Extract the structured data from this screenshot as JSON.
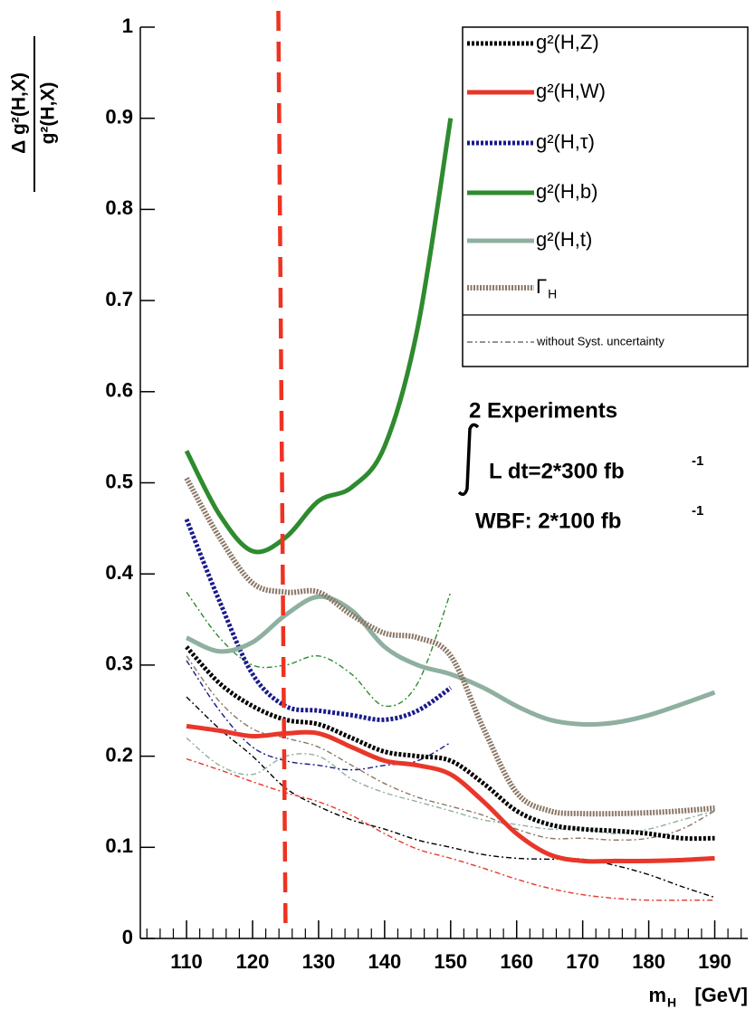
{
  "chart_data": {
    "type": "line",
    "y_label_numerator": "Δ g²(H,X)",
    "y_label_denominator": "g²(H,X)",
    "x_label": "m",
    "x_label_sub": "H",
    "x_label_unit": "[GeV]",
    "xlim": [
      103,
      195
    ],
    "ylim": [
      0,
      1
    ],
    "xticks": [
      110,
      120,
      130,
      140,
      150,
      160,
      170,
      180,
      190
    ],
    "xminorticks": [
      104,
      106,
      108,
      112,
      114,
      116,
      118,
      122,
      124,
      126,
      128,
      132,
      134,
      136,
      138,
      142,
      144,
      146,
      148,
      152,
      154,
      156,
      158,
      162,
      164,
      166,
      168,
      172,
      174,
      176,
      178,
      182,
      184,
      186,
      188,
      192,
      194
    ],
    "yticks": [
      0,
      0.1,
      0.2,
      0.3,
      0.4,
      0.5,
      0.6,
      0.7,
      0.8,
      0.9,
      1
    ],
    "x": [
      110,
      115,
      120,
      125,
      130,
      135,
      140,
      145,
      150,
      155,
      160,
      165,
      170,
      175,
      180,
      185,
      190
    ],
    "series": [
      {
        "name": "g²(H,Z)",
        "color": "#000000",
        "linestyle": "dotted",
        "values": [
          0.32,
          0.28,
          0.255,
          0.24,
          0.235,
          0.22,
          0.205,
          0.2,
          0.195,
          0.17,
          0.14,
          0.125,
          0.12,
          0.118,
          0.115,
          0.11,
          0.11
        ]
      },
      {
        "name": "g²(H,W)",
        "color": "#e8372a",
        "linestyle": "solid",
        "values": [
          0.233,
          0.228,
          0.222,
          0.225,
          0.225,
          0.21,
          0.195,
          0.19,
          0.18,
          0.15,
          0.115,
          0.092,
          0.085,
          0.085,
          0.085,
          0.086,
          0.088
        ]
      },
      {
        "name": "g²(H,τ)",
        "color": "#1a1a8c",
        "linestyle": "dotted",
        "values": [
          0.46,
          0.37,
          0.29,
          0.255,
          0.25,
          0.245,
          0.24,
          0.25,
          0.275,
          null,
          null,
          null,
          null,
          null,
          null,
          null,
          null
        ]
      },
      {
        "name": "g²(H,b)",
        "color": "#2e8b2e",
        "linestyle": "solid",
        "values": [
          0.535,
          0.465,
          0.425,
          0.44,
          0.48,
          0.495,
          0.54,
          0.67,
          0.9,
          null,
          null,
          null,
          null,
          null,
          null,
          null,
          null
        ]
      },
      {
        "name": "g²(H,t)",
        "color": "#8fb0a0",
        "linestyle": "solid",
        "values": [
          0.33,
          0.315,
          0.325,
          0.355,
          0.375,
          0.36,
          0.32,
          0.3,
          0.29,
          0.275,
          0.255,
          0.24,
          0.235,
          0.237,
          0.245,
          0.257,
          0.27
        ]
      },
      {
        "name": "Γ",
        "name_sub": "H",
        "color": "#8b7766",
        "linestyle": "hatched",
        "values": [
          0.505,
          0.44,
          0.39,
          0.38,
          0.38,
          0.355,
          0.335,
          0.33,
          0.31,
          0.23,
          0.16,
          0.14,
          0.137,
          0.137,
          0.138,
          0.14,
          0.143
        ]
      }
    ],
    "nosyst_legend_label": "without Syst. uncertainty",
    "nosyst_series": [
      {
        "color": "#000000",
        "values": [
          0.265,
          0.23,
          0.2,
          0.165,
          0.145,
          0.13,
          0.12,
          0.108,
          0.1,
          0.092,
          0.088,
          0.087,
          0.087,
          0.08,
          0.07,
          0.057,
          0.045
        ]
      },
      {
        "color": "#e8372a",
        "values": [
          0.197,
          0.185,
          0.172,
          0.16,
          0.15,
          0.135,
          0.115,
          0.098,
          0.088,
          0.077,
          0.065,
          0.055,
          0.048,
          0.044,
          0.042,
          0.042,
          0.042
        ]
      },
      {
        "color": "#1a1a8c",
        "values": [
          0.305,
          0.25,
          0.21,
          0.195,
          0.19,
          0.185,
          0.19,
          0.195,
          0.215,
          null,
          null,
          null,
          null,
          null,
          null,
          null,
          null
        ]
      },
      {
        "color": "#2e8b2e",
        "values": [
          0.38,
          0.33,
          0.3,
          0.3,
          0.31,
          0.29,
          0.255,
          0.28,
          0.38,
          null,
          null,
          null,
          null,
          null,
          null,
          null,
          null
        ]
      },
      {
        "color": "#8fb0a0",
        "values": [
          0.22,
          0.19,
          0.18,
          0.2,
          0.2,
          0.175,
          0.16,
          0.15,
          0.14,
          0.13,
          0.125,
          0.12,
          0.12,
          0.115,
          0.12,
          0.13,
          0.14
        ]
      },
      {
        "color": "#8b7766",
        "values": [
          0.31,
          0.26,
          0.23,
          0.22,
          0.21,
          0.19,
          0.17,
          0.155,
          0.145,
          0.135,
          0.12,
          0.11,
          0.11,
          0.108,
          0.11,
          0.12,
          0.14
        ]
      }
    ],
    "vline": {
      "x": 125,
      "color": "#ee3322"
    },
    "annotations": [
      {
        "text": "2 Experiments"
      },
      {
        "text": "L dt=2*300 fb",
        "sup": "-1"
      },
      {
        "text": "WBF: 2*100 fb",
        "sup": "-1"
      }
    ]
  }
}
